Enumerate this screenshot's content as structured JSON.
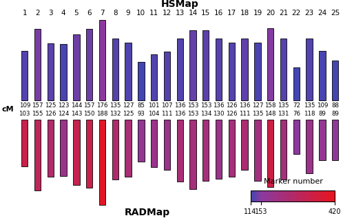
{
  "chart_data": {
    "type": "chromosome_map",
    "categories": [
      "1",
      "2",
      "3",
      "4",
      "5",
      "6",
      "7",
      "8",
      "9",
      "10",
      "11",
      "12",
      "13",
      "14",
      "15",
      "16",
      "17",
      "18",
      "19",
      "20",
      "21",
      "22",
      "23",
      "24",
      "25"
    ],
    "y_label": "cM",
    "data_labels": true,
    "series": [
      {
        "name": "HSMap",
        "values": [
          109,
          157,
          125,
          123,
          144,
          157,
          176,
          135,
          127,
          85,
          101,
          107,
          136,
          153,
          153,
          136,
          126,
          136,
          127,
          158,
          135,
          72,
          135,
          109,
          88
        ],
        "markers": [
          125,
          145,
          130,
          122,
          140,
          140,
          160,
          128,
          124,
          118,
          125,
          128,
          125,
          135,
          130,
          128,
          126,
          132,
          122,
          150,
          128,
          118,
          125,
          120,
          118
        ]
      },
      {
        "name": "RADMap",
        "values": [
          103,
          155,
          126,
          124,
          143,
          150,
          188,
          132,
          125,
          93,
          104,
          111,
          136,
          153,
          134,
          130,
          126,
          111,
          135,
          148,
          131,
          76,
          118,
          89,
          89
        ],
        "markers": [
          330,
          300,
          260,
          200,
          320,
          330,
          400,
          260,
          240,
          180,
          200,
          200,
          240,
          230,
          230,
          200,
          230,
          250,
          220,
          340,
          230,
          160,
          200,
          180,
          170
        ]
      }
    ],
    "colorbar": {
      "label": "Marker number",
      "range": [
        114,
        420
      ],
      "ticks": [
        114,
        153,
        420
      ]
    }
  }
}
